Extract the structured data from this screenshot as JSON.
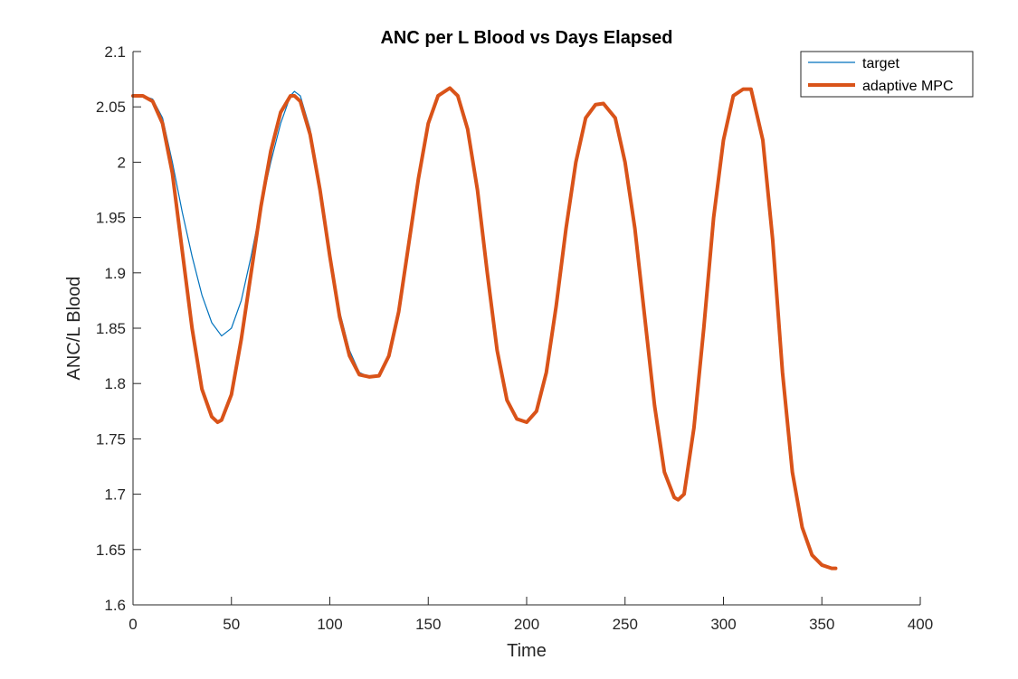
{
  "chart_data": {
    "type": "line",
    "title": "ANC per L Blood vs Days Elapsed",
    "xlabel": "Time",
    "ylabel": "ANC/L Blood",
    "xlim": [
      0,
      400
    ],
    "ylim": [
      1.6,
      2.1
    ],
    "xticks": [
      0,
      50,
      100,
      150,
      200,
      250,
      300,
      350,
      400
    ],
    "xtick_labels": [
      "0",
      "50",
      "100",
      "150",
      "200",
      "250",
      "300",
      "350",
      "400"
    ],
    "yticks": [
      1.6,
      1.65,
      1.7,
      1.75,
      1.8,
      1.85,
      1.9,
      1.95,
      2.0,
      2.05,
      2.1
    ],
    "ytick_labels": [
      "1.6",
      "1.65",
      "1.7",
      "1.75",
      "1.8",
      "1.85",
      "1.9",
      "1.95",
      "2",
      "2.05",
      "2.1"
    ],
    "grid": false,
    "legend_position": "top-right",
    "series": [
      {
        "name": "target",
        "color": "#0072BD",
        "style": "thin",
        "x": [
          0,
          5,
          10,
          15,
          20,
          25,
          30,
          35,
          40,
          45,
          50,
          55,
          60,
          65,
          70,
          75,
          80,
          82,
          85,
          90,
          95,
          100,
          105,
          110,
          115,
          120,
          125,
          130,
          135,
          140,
          145,
          150,
          155,
          161,
          165,
          170,
          175,
          180,
          185,
          190,
          195,
          200,
          205,
          210,
          215,
          220,
          225,
          230,
          235,
          239,
          245,
          250,
          255,
          260,
          265,
          270,
          275,
          277,
          280,
          285,
          290,
          295,
          300,
          305,
          310,
          314,
          320,
          325,
          330,
          335,
          340,
          345,
          350,
          355,
          357
        ],
        "y": [
          2.06,
          2.06,
          2.057,
          2.04,
          2.0,
          1.955,
          1.915,
          1.88,
          1.855,
          1.843,
          1.85,
          1.875,
          1.915,
          1.96,
          2.0,
          2.035,
          2.06,
          2.064,
          2.06,
          2.03,
          1.98,
          1.92,
          1.865,
          1.83,
          1.81,
          1.806,
          1.807,
          1.825,
          1.865,
          1.925,
          1.985,
          2.035,
          2.06,
          2.067,
          2.06,
          2.03,
          1.975,
          1.9,
          1.83,
          1.785,
          1.768,
          1.765,
          1.775,
          1.81,
          1.87,
          1.94,
          2.0,
          2.04,
          2.052,
          2.053,
          2.04,
          2.0,
          1.94,
          1.86,
          1.78,
          1.72,
          1.697,
          1.695,
          1.7,
          1.76,
          1.85,
          1.95,
          2.02,
          2.06,
          2.066,
          2.066,
          2.02,
          1.93,
          1.81,
          1.72,
          1.67,
          1.645,
          1.636,
          1.633,
          1.633
        ]
      },
      {
        "name": "adaptive MPC",
        "color": "#D95319",
        "style": "thick",
        "x": [
          0,
          5,
          10,
          15,
          20,
          25,
          30,
          35,
          40,
          43,
          45,
          50,
          55,
          60,
          65,
          70,
          75,
          80,
          82,
          85,
          90,
          95,
          100,
          105,
          110,
          115,
          120,
          125,
          130,
          135,
          140,
          145,
          150,
          155,
          161,
          165,
          170,
          175,
          180,
          185,
          190,
          195,
          200,
          205,
          210,
          215,
          220,
          225,
          230,
          235,
          239,
          245,
          250,
          255,
          260,
          265,
          270,
          275,
          277,
          280,
          285,
          290,
          295,
          300,
          305,
          310,
          314,
          320,
          325,
          330,
          335,
          340,
          345,
          350,
          355,
          357
        ],
        "y": [
          2.06,
          2.06,
          2.055,
          2.035,
          1.99,
          1.92,
          1.85,
          1.795,
          1.77,
          1.765,
          1.767,
          1.79,
          1.84,
          1.9,
          1.96,
          2.01,
          2.045,
          2.06,
          2.06,
          2.055,
          2.025,
          1.975,
          1.915,
          1.86,
          1.825,
          1.808,
          1.806,
          1.807,
          1.825,
          1.865,
          1.925,
          1.985,
          2.035,
          2.06,
          2.067,
          2.06,
          2.03,
          1.975,
          1.9,
          1.83,
          1.785,
          1.768,
          1.765,
          1.775,
          1.81,
          1.87,
          1.94,
          2.0,
          2.04,
          2.052,
          2.053,
          2.04,
          2.0,
          1.94,
          1.86,
          1.78,
          1.72,
          1.697,
          1.695,
          1.7,
          1.76,
          1.85,
          1.95,
          2.02,
          2.06,
          2.066,
          2.066,
          2.02,
          1.93,
          1.81,
          1.72,
          1.67,
          1.645,
          1.636,
          1.633,
          1.633
        ]
      }
    ]
  }
}
